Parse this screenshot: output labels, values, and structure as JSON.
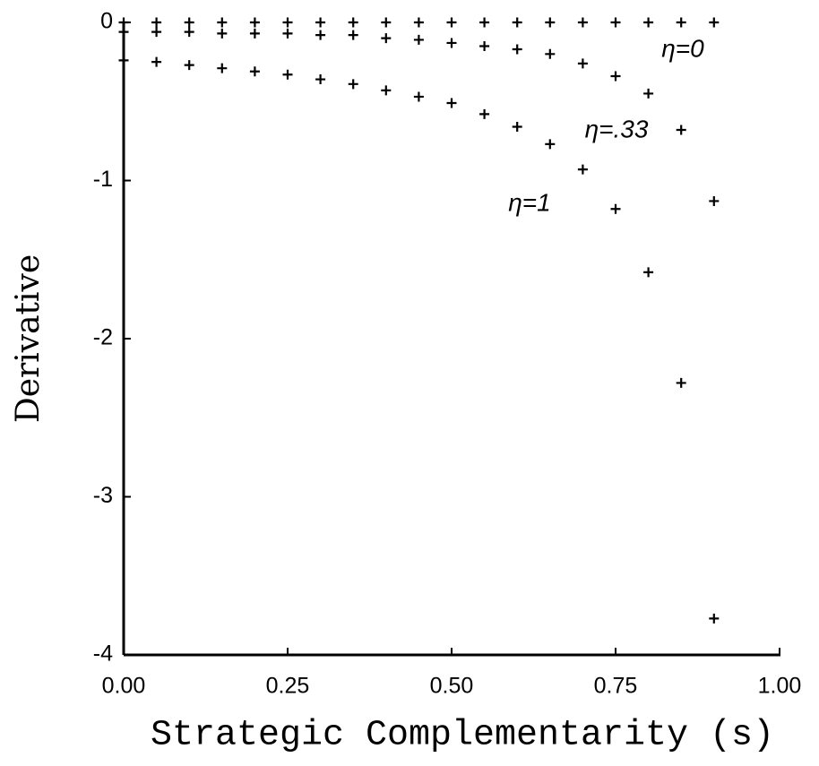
{
  "chart_data": {
    "type": "scatter",
    "x_label": "Strategic Complementarity (s)",
    "y_label": "Derivative",
    "x": [
      0,
      0.05,
      0.1,
      0.15,
      0.2,
      0.25,
      0.3,
      0.35,
      0.4,
      0.45,
      0.5,
      0.55,
      0.6,
      0.65,
      0.7,
      0.75,
      0.8,
      0.85,
      0.9
    ],
    "series": [
      {
        "name": "η=0",
        "color": "#000000",
        "values": [
          0,
          0,
          0,
          0,
          0,
          0,
          0,
          0,
          0,
          0,
          0,
          0,
          0,
          0,
          0,
          0,
          0,
          0,
          0
        ]
      },
      {
        "name": "η=.33",
        "color": "#000000",
        "values": [
          -0.06,
          -0.06,
          -0.06,
          -0.07,
          -0.07,
          -0.07,
          -0.08,
          -0.08,
          -0.1,
          -0.11,
          -0.13,
          -0.15,
          -0.17,
          -0.2,
          -0.26,
          -0.34,
          -0.45,
          -0.68,
          -1.13
        ]
      },
      {
        "name": "η=1",
        "color": "#000000",
        "values": [
          -0.24,
          -0.25,
          -0.27,
          -0.29,
          -0.31,
          -0.33,
          -0.36,
          -0.39,
          -0.43,
          -0.47,
          -0.51,
          -0.58,
          -0.66,
          -0.77,
          -0.93,
          -1.18,
          -1.58,
          -2.28,
          -3.77
        ]
      }
    ],
    "xlim": [
      0,
      1
    ],
    "ylim": [
      -4,
      0
    ],
    "xticks": [
      {
        "value": 0,
        "label": "0.00"
      },
      {
        "value": 0.25,
        "label": "0.25"
      },
      {
        "value": 0.5,
        "label": "0.50"
      },
      {
        "value": 0.75,
        "label": "0.75"
      },
      {
        "value": 1,
        "label": "1.00"
      }
    ],
    "yticks": [
      0,
      -1,
      -2,
      -3,
      -4
    ]
  }
}
